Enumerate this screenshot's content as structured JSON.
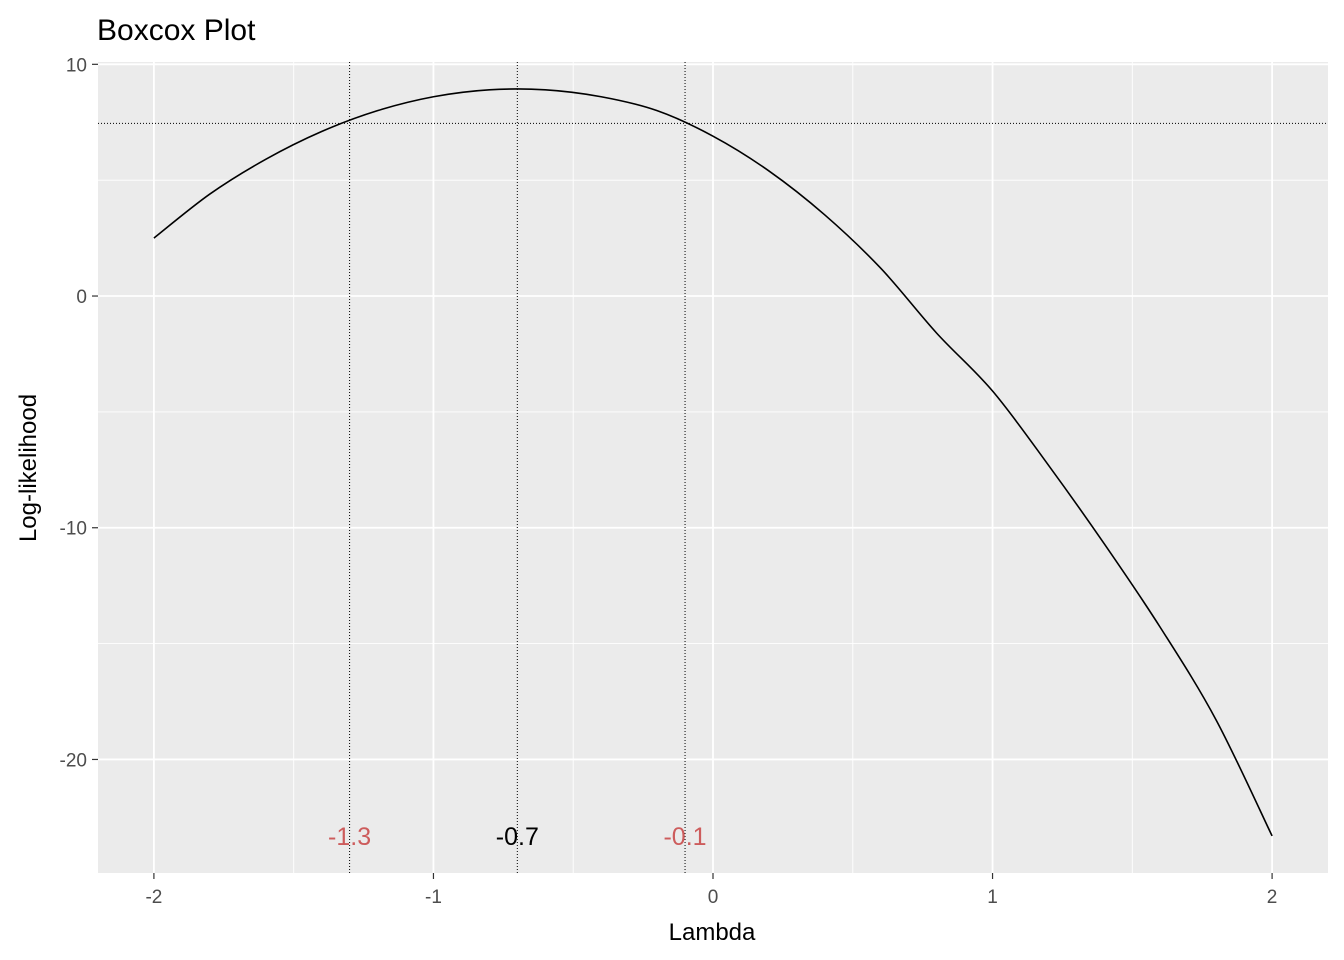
{
  "chart_data": {
    "type": "line",
    "title": "Boxcox Plot",
    "xlabel": "Lambda",
    "ylabel": "Log-likelihood",
    "xlim": [
      -2.2,
      2.2
    ],
    "ylim": [
      -24.9,
      10.1
    ],
    "x_ticks": [
      -2,
      -1,
      0,
      1,
      2
    ],
    "x_tick_labels": [
      "-2",
      "-1",
      "0",
      "1",
      "2"
    ],
    "y_ticks": [
      -20,
      -10,
      0,
      10
    ],
    "y_tick_labels": [
      "-20",
      "-10",
      "0",
      "10"
    ],
    "grid": true,
    "line_color": "#000000",
    "panel_color": "#ebebeb",
    "series": [
      {
        "x": [
          -2.0,
          -1.8,
          -1.6,
          -1.4,
          -1.2,
          -1.0,
          -0.8,
          -0.6,
          -0.4,
          -0.2,
          0.0,
          0.2,
          0.4,
          0.6,
          0.8,
          1.0,
          1.2,
          1.4,
          1.6,
          1.8,
          2.0
        ],
        "y": [
          2.5,
          4.4,
          5.9,
          7.1,
          8.0,
          8.6,
          8.9,
          8.9,
          8.6,
          8.0,
          6.9,
          5.4,
          3.5,
          1.2,
          -1.6,
          -4.1,
          -7.3,
          -10.7,
          -14.3,
          -18.3,
          -23.3
        ]
      }
    ],
    "reference_lines": {
      "horizontal_y": 7.45,
      "vertical_x": [
        -1.3,
        -0.7,
        -0.1
      ]
    },
    "annotations": [
      {
        "x": -1.3,
        "y": -23.3,
        "text": "-1.3",
        "color": "#cd5c5c"
      },
      {
        "x": -0.7,
        "y": -23.3,
        "text": "-0.7",
        "color": "#000000"
      },
      {
        "x": -0.1,
        "y": -23.3,
        "text": "-0.1",
        "color": "#cd5c5c"
      }
    ]
  }
}
